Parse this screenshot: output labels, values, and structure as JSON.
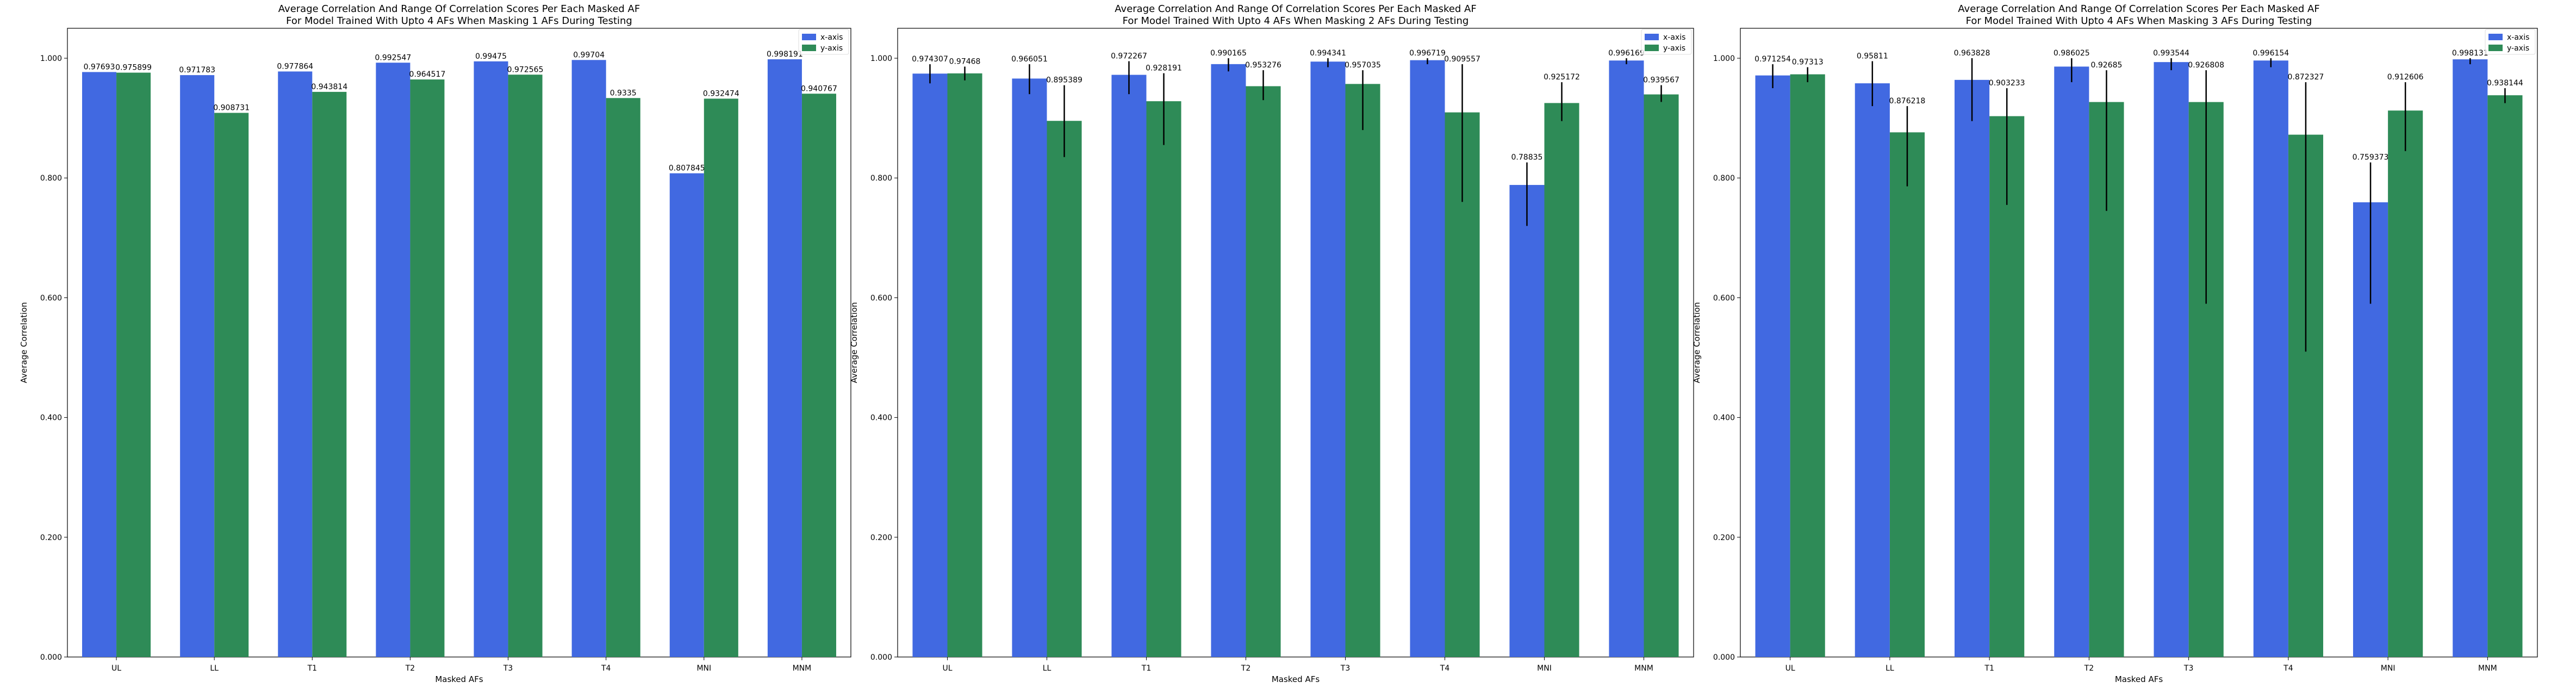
{
  "chart_data": [
    {
      "type": "bar",
      "title": "Average Correlation And Range Of Correlation Scores Per Each Masked AF",
      "subtitle": "For Model Trained With Upto 4 AFs When Masking 1 AFs During Testing",
      "xlabel": "Masked AFs",
      "ylabel": "Average Correlation",
      "ylim": [
        0,
        1.05
      ],
      "yticks": [
        "0.000",
        "0.200",
        "0.400",
        "0.600",
        "0.800",
        "1.000"
      ],
      "categories": [
        "UL",
        "LL",
        "T1",
        "T2",
        "T3",
        "T4",
        "MNI",
        "MNM"
      ],
      "legend_position": "top-right",
      "series": [
        {
          "name": "x-axis",
          "color": "#4169e1",
          "values": [
            0.97693,
            0.971783,
            0.977864,
            0.992547,
            0.99475,
            0.99704,
            0.807845,
            0.998191
          ],
          "labels": [
            "0.97693",
            "0.971783",
            "0.977864",
            "0.992547",
            "0.99475",
            "0.99704",
            "0.807845",
            "0.998191"
          ],
          "error_low": [
            0.97693,
            0.971783,
            0.977864,
            0.992547,
            0.99475,
            0.99704,
            0.807845,
            0.998191
          ],
          "error_high": [
            0.97693,
            0.971783,
            0.977864,
            0.992547,
            0.99475,
            0.99704,
            0.807845,
            0.998191
          ]
        },
        {
          "name": "y-axis",
          "color": "#2e8b57",
          "values": [
            0.975899,
            0.908731,
            0.943814,
            0.964517,
            0.972565,
            0.9335,
            0.932474,
            0.940767
          ],
          "labels": [
            "0.975899",
            "0.908731",
            "0.943814",
            "0.964517",
            "0.972565",
            "0.9335",
            "0.932474",
            "0.940767"
          ],
          "error_low": [
            0.975899,
            0.908731,
            0.943814,
            0.964517,
            0.972565,
            0.9335,
            0.932474,
            0.940767
          ],
          "error_high": [
            0.975899,
            0.908731,
            0.943814,
            0.964517,
            0.972565,
            0.9335,
            0.932474,
            0.940767
          ]
        }
      ]
    },
    {
      "type": "bar",
      "title": "Average Correlation And Range Of Correlation Scores Per Each Masked AF",
      "subtitle": "For Model Trained With Upto 4 AFs When Masking 2 AFs During Testing",
      "xlabel": "Masked AFs",
      "ylabel": "Average Correlation",
      "ylim": [
        0,
        1.05
      ],
      "yticks": [
        "0.000",
        "0.200",
        "0.400",
        "0.600",
        "0.800",
        "1.000"
      ],
      "categories": [
        "UL",
        "LL",
        "T1",
        "T2",
        "T3",
        "T4",
        "MNI",
        "MNM"
      ],
      "legend_position": "top-right",
      "series": [
        {
          "name": "x-axis",
          "color": "#4169e1",
          "values": [
            0.974307,
            0.966051,
            0.972267,
            0.990165,
            0.994341,
            0.996719,
            0.78835,
            0.996169
          ],
          "labels": [
            "0.974307",
            "0.966051",
            "0.972267",
            "0.990165",
            "0.994341",
            "0.996719",
            "0.78835",
            "0.996169"
          ],
          "error_low": [
            0.958,
            0.94,
            0.94,
            0.978,
            0.985,
            0.99,
            0.72,
            0.99
          ],
          "error_high": [
            0.99,
            0.99,
            0.995,
            1.0,
            1.0,
            1.0,
            0.826,
            1.0
          ]
        },
        {
          "name": "y-axis",
          "color": "#2e8b57",
          "values": [
            0.97468,
            0.895389,
            0.928191,
            0.953276,
            0.957035,
            0.909557,
            0.925172,
            0.939567
          ],
          "labels": [
            "0.97468",
            "0.895389",
            "0.928191",
            "0.953276",
            "0.957035",
            "0.909557",
            "0.925172",
            "0.939567"
          ],
          "error_low": [
            0.963,
            0.835,
            0.855,
            0.93,
            0.88,
            0.76,
            0.895,
            0.927
          ],
          "error_high": [
            0.986,
            0.955,
            0.975,
            0.98,
            0.98,
            0.99,
            0.96,
            0.955
          ]
        }
      ]
    },
    {
      "type": "bar",
      "title": "Average Correlation And Range Of Correlation Scores Per Each Masked AF",
      "subtitle": "For Model Trained With Upto 4 AFs When Masking 3 AFs During Testing",
      "xlabel": "Masked AFs",
      "ylabel": "Average Correlation",
      "ylim": [
        0,
        1.05
      ],
      "yticks": [
        "0.000",
        "0.200",
        "0.400",
        "0.600",
        "0.800",
        "1.000"
      ],
      "categories": [
        "UL",
        "LL",
        "T1",
        "T2",
        "T3",
        "T4",
        "MNI",
        "MNM"
      ],
      "legend_position": "top-right",
      "series": [
        {
          "name": "x-axis",
          "color": "#4169e1",
          "values": [
            0.971254,
            0.95811,
            0.963828,
            0.986025,
            0.993544,
            0.996154,
            0.759373,
            0.998131
          ],
          "labels": [
            "0.971254",
            "0.95811",
            "0.963828",
            "0.986025",
            "0.993544",
            "0.996154",
            "0.759373",
            "0.998131"
          ],
          "error_low": [
            0.95,
            0.92,
            0.895,
            0.96,
            0.98,
            0.985,
            0.59,
            0.99
          ],
          "error_high": [
            0.99,
            0.995,
            1.0,
            1.0,
            1.0,
            1.0,
            0.826,
            1.0
          ]
        },
        {
          "name": "y-axis",
          "color": "#2e8b57",
          "values": [
            0.97313,
            0.876218,
            0.903233,
            0.92685,
            0.926808,
            0.872327,
            0.912606,
            0.938144
          ],
          "labels": [
            "0.97313",
            "0.876218",
            "0.903233",
            "0.92685",
            "0.926808",
            "0.872327",
            "0.912606",
            "0.938144"
          ],
          "error_low": [
            0.96,
            0.786,
            0.755,
            0.745,
            0.59,
            0.51,
            0.845,
            0.925
          ],
          "error_high": [
            0.985,
            0.92,
            0.95,
            0.98,
            0.98,
            0.96,
            0.96,
            0.95
          ]
        }
      ]
    }
  ]
}
